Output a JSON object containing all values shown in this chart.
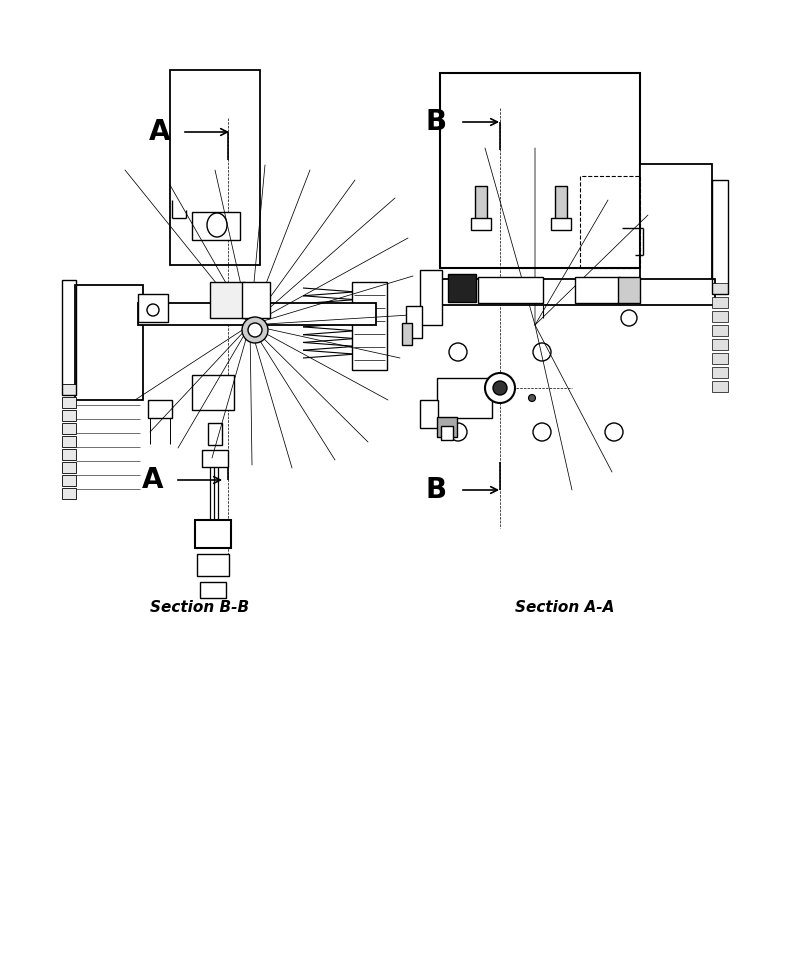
{
  "bg_color": "#ffffff",
  "lc": "#000000",
  "lw": 1.0,
  "section_bb_label": "Section B-B",
  "section_aa_label": "Section A-A",
  "label_A": "A",
  "label_B": "B",
  "figsize": [
    7.92,
    9.61
  ],
  "dpi": 100
}
